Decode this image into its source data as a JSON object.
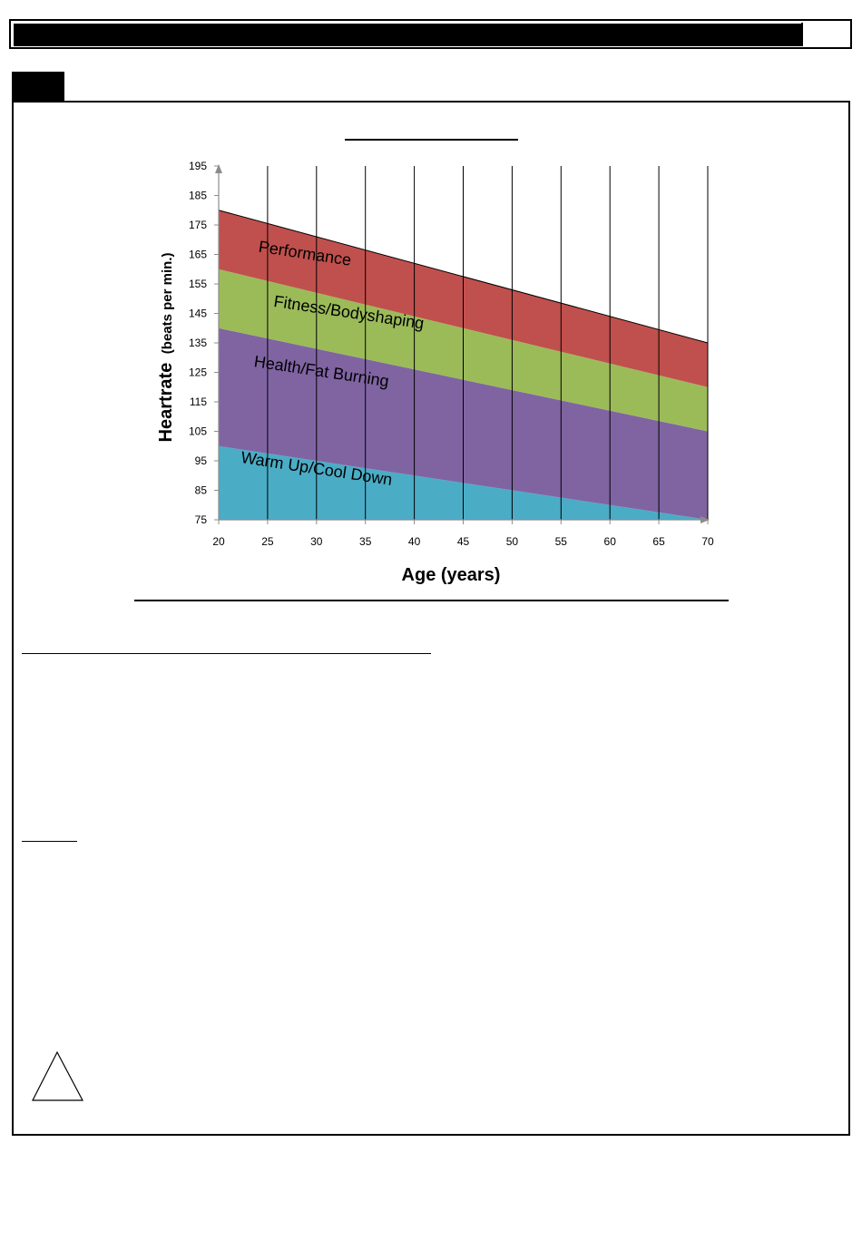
{
  "chart_data": {
    "type": "area",
    "title": "",
    "xlabel": "Age (years)",
    "ylabel_main": "Heartrate",
    "ylabel_sub": "(beats per min.)",
    "x": [
      20,
      25,
      30,
      35,
      40,
      45,
      50,
      55,
      60,
      65,
      70
    ],
    "xlim": [
      20,
      70
    ],
    "ylim": [
      75,
      195
    ],
    "yticks": [
      75,
      85,
      95,
      105,
      115,
      125,
      135,
      145,
      155,
      165,
      175,
      185,
      195
    ],
    "grid": "vertical",
    "zones": [
      {
        "name": "Warm Up/Cool Down",
        "color": "#4bacc6",
        "lower": [
          75,
          75
        ],
        "upper": [
          100,
          75
        ]
      },
      {
        "name": "Health/Fat Burning",
        "color": "#8064a2",
        "lower": [
          100,
          75
        ],
        "upper": [
          140,
          105
        ]
      },
      {
        "name": "Fitness/Bodyshaping",
        "color": "#9bbb59",
        "lower": [
          140,
          105
        ],
        "upper": [
          160,
          120
        ]
      },
      {
        "name": "Performance",
        "color": "#c0504d",
        "lower": [
          160,
          120
        ],
        "upper": [
          180,
          135
        ]
      }
    ],
    "zone_labels": [
      {
        "text": "Performance",
        "x": 28.8,
        "y": 165
      },
      {
        "text": "Fitness/Bodyshaping",
        "x": 33.3,
        "y": 145
      },
      {
        "text": "Health/Fat Burning",
        "x": 30.5,
        "y": 125
      },
      {
        "text": "Warm Up/Cool Down",
        "x": 30.0,
        "y": 92
      }
    ]
  }
}
